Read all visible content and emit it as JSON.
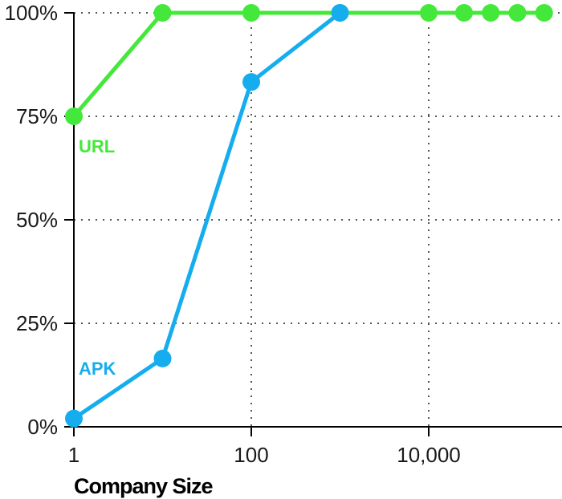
{
  "chart_data": {
    "type": "line",
    "title": "",
    "xlabel": "Company Size",
    "ylabel": "",
    "x_scale": "log",
    "xlim": [
      1,
      250000
    ],
    "ylim": [
      0,
      100
    ],
    "x_ticks": [
      {
        "value": 1,
        "label": "1"
      },
      {
        "value": 100,
        "label": "100"
      },
      {
        "value": 10000,
        "label": "10,000"
      }
    ],
    "y_ticks": [
      {
        "value": 0,
        "label": "0%"
      },
      {
        "value": 25,
        "label": "25%"
      },
      {
        "value": 50,
        "label": "50%"
      },
      {
        "value": 75,
        "label": "75%"
      },
      {
        "value": 100,
        "label": "100%"
      }
    ],
    "grid": "dotted",
    "series": [
      {
        "name": "URL",
        "color": "#44e83a",
        "points": [
          {
            "x": 1,
            "y": 75
          },
          {
            "x": 10,
            "y": 100
          },
          {
            "x": 100,
            "y": 100
          },
          {
            "x": 1000,
            "y": 100
          },
          {
            "x": 10000,
            "y": 100
          },
          {
            "x": 25000,
            "y": 100
          },
          {
            "x": 50000,
            "y": 100
          },
          {
            "x": 100000,
            "y": 100
          },
          {
            "x": 200000,
            "y": 100
          }
        ]
      },
      {
        "name": "APK",
        "color": "#16adee",
        "points": [
          {
            "x": 1,
            "y": 2
          },
          {
            "x": 10,
            "y": 16.5
          },
          {
            "x": 100,
            "y": 83.3
          },
          {
            "x": 1000,
            "y": 100
          }
        ]
      }
    ]
  }
}
